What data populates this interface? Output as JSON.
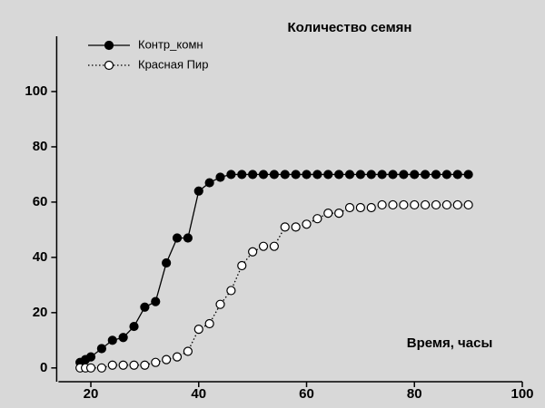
{
  "chart_data": {
    "type": "line",
    "title": "Количество семян",
    "x_label": "Время, часы",
    "x": [
      18,
      19,
      20,
      22,
      24,
      26,
      28,
      30,
      32,
      34,
      36,
      38,
      40,
      42,
      44,
      46,
      48,
      50,
      52,
      54,
      56,
      58,
      60,
      62,
      64,
      66,
      68,
      70,
      72,
      74,
      76,
      78,
      80,
      82,
      84,
      86,
      88,
      90
    ],
    "series": [
      {
        "name": "Контр_комн",
        "color": "#000000",
        "marker": "filled",
        "linestyle": "solid",
        "values": [
          2,
          3,
          4,
          7,
          10,
          11,
          15,
          22,
          24,
          38,
          47,
          47,
          64,
          67,
          69,
          70,
          70,
          70,
          70,
          70,
          70,
          70,
          70,
          70,
          70,
          70,
          70,
          70,
          70,
          70,
          70,
          70,
          70,
          70,
          70,
          70,
          70,
          70
        ]
      },
      {
        "name": "Красная Пир",
        "color": "#000000",
        "marker": "open",
        "linestyle": "dotted",
        "values": [
          0,
          0,
          0,
          0,
          1,
          1,
          1,
          1,
          2,
          3,
          4,
          6,
          14,
          16,
          23,
          28,
          37,
          42,
          44,
          44,
          51,
          51,
          52,
          54,
          56,
          56,
          58,
          58,
          58,
          59,
          59,
          59,
          59,
          59,
          59,
          59,
          59,
          59
        ]
      }
    ],
    "xlim": [
      14,
      100
    ],
    "xticks": [
      20,
      40,
      60,
      80,
      100
    ],
    "ylim": [
      -4,
      120
    ],
    "yticks": [
      0,
      20,
      40,
      60,
      80,
      100
    ],
    "grid": false,
    "legend": "upper left"
  }
}
